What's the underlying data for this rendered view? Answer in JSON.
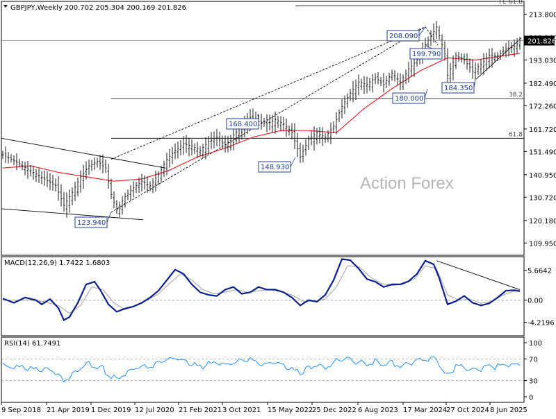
{
  "chart_data": {
    "type": "candlestick",
    "symbol_title": "GBPJPY,Weekly",
    "ohlc_values": "200.702 205.304 200.169 201.826",
    "watermark": "Action Forex",
    "current_price_label": "201.826",
    "price_axis": {
      "ylim": [
        105.0,
        219.0
      ],
      "ticks": [
        "213.800",
        "203.260",
        "193.030",
        "182.490",
        "172.260",
        "161.720",
        "151.490",
        "140.950",
        "130.720",
        "120.180",
        "109.950"
      ]
    },
    "x_axis": {
      "labels": [
        "9 Sep 2018",
        "21 Apr 2019",
        "1 Dec 2019",
        "12 Jul 2020",
        "21 Feb 2021",
        "3 Oct 2021",
        "15 May 2022",
        "25 Dec 2022",
        "6 Aug 2023",
        "17 Mar 2024",
        "27 Oct 2024",
        "8 Jun 2025"
      ]
    },
    "price_series_points": [
      [
        0,
        150
      ],
      [
        3,
        148
      ],
      [
        7,
        145
      ],
      [
        11,
        142
      ],
      [
        15,
        139
      ],
      [
        19,
        136
      ],
      [
        22,
        127
      ],
      [
        25,
        133
      ],
      [
        28,
        140
      ],
      [
        31,
        145
      ],
      [
        34,
        147
      ],
      [
        37,
        144
      ],
      [
        39,
        132
      ],
      [
        41,
        125
      ],
      [
        44,
        131
      ],
      [
        47,
        135
      ],
      [
        50,
        138
      ],
      [
        53,
        136
      ],
      [
        56,
        141
      ],
      [
        59,
        148
      ],
      [
        62,
        152
      ],
      [
        65,
        155
      ],
      [
        68,
        154
      ],
      [
        71,
        152
      ],
      [
        74,
        156
      ],
      [
        77,
        158
      ],
      [
        80,
        154
      ],
      [
        83,
        159
      ],
      [
        86,
        163
      ],
      [
        89,
        167
      ],
      [
        92,
        165
      ],
      [
        95,
        164
      ],
      [
        98,
        166
      ],
      [
        101,
        164
      ],
      [
        104,
        160
      ],
      [
        107,
        149
      ],
      [
        110,
        157
      ],
      [
        113,
        160
      ],
      [
        116,
        158
      ],
      [
        119,
        163
      ],
      [
        122,
        172
      ],
      [
        125,
        178
      ],
      [
        128,
        183
      ],
      [
        131,
        182
      ],
      [
        134,
        185
      ],
      [
        137,
        182
      ],
      [
        140,
        187
      ],
      [
        143,
        183
      ],
      [
        146,
        189
      ],
      [
        149,
        193
      ],
      [
        152,
        200
      ],
      [
        155,
        206
      ],
      [
        156,
        208
      ],
      [
        159,
        196
      ],
      [
        160,
        186
      ],
      [
        163,
        195
      ],
      [
        166,
        193
      ],
      [
        169,
        188
      ],
      [
        172,
        191
      ],
      [
        175,
        195
      ],
      [
        178,
        195
      ],
      [
        181,
        198
      ],
      [
        184,
        199
      ],
      [
        186,
        201.8
      ]
    ],
    "sma_points": [
      [
        0,
        144
      ],
      [
        10,
        145
      ],
      [
        20,
        142
      ],
      [
        30,
        140
      ],
      [
        40,
        138
      ],
      [
        50,
        139
      ],
      [
        60,
        143
      ],
      [
        70,
        149
      ],
      [
        80,
        153
      ],
      [
        90,
        158
      ],
      [
        100,
        161
      ],
      [
        110,
        161
      ],
      [
        120,
        160
      ],
      [
        130,
        171
      ],
      [
        140,
        180
      ],
      [
        150,
        188
      ],
      [
        160,
        194
      ],
      [
        170,
        193
      ],
      [
        180,
        195
      ],
      [
        186,
        196
      ]
    ],
    "horizontal_levels": [
      {
        "label": "FE 61.8",
        "value": 217.6
      },
      {
        "label": "38.2",
        "value": 175.5
      },
      {
        "label": "61.8",
        "value": 157.5
      }
    ],
    "annotations": [
      {
        "label": "208.090",
        "value": 208.09
      },
      {
        "label": "199.790",
        "value": 199.79
      },
      {
        "label": "184.350",
        "value": 184.35
      },
      {
        "label": "180.000",
        "value": 180.0
      },
      {
        "label": "168.400",
        "value": 168.4
      },
      {
        "label": "148.930",
        "value": 148.93
      },
      {
        "label": "123.940",
        "value": 123.94
      }
    ],
    "macd": {
      "title": "MACD(12,26,9) 1.7422 1.6803",
      "ticks": [
        "5.6642",
        "0.00",
        "-4.2196"
      ],
      "ylim": [
        -6.5,
        8.0
      ],
      "line_points": [
        [
          0,
          0.3
        ],
        [
          4,
          -0.5
        ],
        [
          8,
          0.5
        ],
        [
          12,
          0.0
        ],
        [
          14,
          -0.8
        ],
        [
          17,
          0.2
        ],
        [
          20,
          -1.5
        ],
        [
          22,
          -3.8
        ],
        [
          24,
          -3.2
        ],
        [
          27,
          -0.5
        ],
        [
          30,
          3.0
        ],
        [
          33,
          3.5
        ],
        [
          35,
          2.0
        ],
        [
          38,
          -0.8
        ],
        [
          41,
          -2.2
        ],
        [
          44,
          -1.6
        ],
        [
          47,
          -1.2
        ],
        [
          50,
          -0.5
        ],
        [
          53,
          0.5
        ],
        [
          56,
          1.8
        ],
        [
          59,
          3.8
        ],
        [
          62,
          5.8
        ],
        [
          65,
          5.0
        ],
        [
          68,
          3.0
        ],
        [
          71,
          1.5
        ],
        [
          74,
          1.0
        ],
        [
          77,
          0.8
        ],
        [
          80,
          2.0
        ],
        [
          83,
          2.5
        ],
        [
          86,
          1.2
        ],
        [
          89,
          1.5
        ],
        [
          92,
          2.5
        ],
        [
          95,
          2.0
        ],
        [
          98,
          2.0
        ],
        [
          101,
          1.5
        ],
        [
          104,
          0.5
        ],
        [
          107,
          -1.0
        ],
        [
          110,
          0.0
        ],
        [
          113,
          -0.3
        ],
        [
          116,
          1.0
        ],
        [
          119,
          3.8
        ],
        [
          122,
          7.8
        ],
        [
          125,
          7.6
        ],
        [
          128,
          6.0
        ],
        [
          131,
          4.0
        ],
        [
          134,
          3.5
        ],
        [
          137,
          2.5
        ],
        [
          140,
          3.0
        ],
        [
          143,
          3.0
        ],
        [
          146,
          3.6
        ],
        [
          149,
          5.0
        ],
        [
          152,
          7.5
        ],
        [
          155,
          6.8
        ],
        [
          157,
          4.2
        ],
        [
          160,
          -0.8
        ],
        [
          163,
          -0.2
        ],
        [
          166,
          0.8
        ],
        [
          169,
          -0.5
        ],
        [
          172,
          -1.0
        ],
        [
          175,
          -0.6
        ],
        [
          178,
          0.5
        ],
        [
          181,
          1.8
        ],
        [
          184,
          1.9
        ],
        [
          186,
          1.7
        ]
      ],
      "signal_points": [
        [
          0,
          0.0
        ],
        [
          5,
          0.0
        ],
        [
          10,
          0.0
        ],
        [
          15,
          -0.3
        ],
        [
          20,
          -1.0
        ],
        [
          24,
          -2.5
        ],
        [
          28,
          -1.0
        ],
        [
          32,
          2.5
        ],
        [
          36,
          2.0
        ],
        [
          40,
          -0.5
        ],
        [
          44,
          -1.8
        ],
        [
          48,
          -1.0
        ],
        [
          52,
          0.0
        ],
        [
          56,
          1.2
        ],
        [
          60,
          3.2
        ],
        [
          64,
          5.0
        ],
        [
          68,
          3.8
        ],
        [
          72,
          2.0
        ],
        [
          76,
          1.2
        ],
        [
          80,
          1.5
        ],
        [
          84,
          2.0
        ],
        [
          88,
          1.5
        ],
        [
          92,
          1.8
        ],
        [
          96,
          2.0
        ],
        [
          100,
          1.6
        ],
        [
          104,
          1.0
        ],
        [
          108,
          -0.2
        ],
        [
          112,
          -0.2
        ],
        [
          116,
          0.2
        ],
        [
          120,
          2.5
        ],
        [
          124,
          6.5
        ],
        [
          128,
          6.4
        ],
        [
          132,
          4.5
        ],
        [
          136,
          3.2
        ],
        [
          140,
          2.8
        ],
        [
          144,
          3.0
        ],
        [
          148,
          4.0
        ],
        [
          152,
          6.5
        ],
        [
          156,
          6.0
        ],
        [
          160,
          1.0
        ],
        [
          164,
          0.0
        ],
        [
          168,
          0.2
        ],
        [
          172,
          -0.6
        ],
        [
          176,
          -0.2
        ],
        [
          180,
          1.0
        ],
        [
          184,
          1.7
        ],
        [
          186,
          1.7
        ]
      ]
    },
    "rsi": {
      "title": "RSI(14) 61.7491",
      "ticks": [
        "100",
        "70",
        "30",
        "0"
      ],
      "ylim": [
        0,
        100
      ],
      "points": [
        [
          0,
          60
        ],
        [
          4,
          55
        ],
        [
          8,
          58
        ],
        [
          12,
          52
        ],
        [
          16,
          56
        ],
        [
          20,
          45
        ],
        [
          22,
          35
        ],
        [
          24,
          42
        ],
        [
          27,
          55
        ],
        [
          30,
          65
        ],
        [
          33,
          62
        ],
        [
          36,
          55
        ],
        [
          39,
          40
        ],
        [
          41,
          38
        ],
        [
          44,
          48
        ],
        [
          47,
          55
        ],
        [
          50,
          60
        ],
        [
          53,
          58
        ],
        [
          56,
          65
        ],
        [
          59,
          72
        ],
        [
          62,
          75
        ],
        [
          65,
          70
        ],
        [
          68,
          62
        ],
        [
          71,
          58
        ],
        [
          74,
          64
        ],
        [
          77,
          66
        ],
        [
          80,
          60
        ],
        [
          83,
          65
        ],
        [
          86,
          70
        ],
        [
          89,
          72
        ],
        [
          92,
          64
        ],
        [
          95,
          62
        ],
        [
          98,
          68
        ],
        [
          101,
          60
        ],
        [
          104,
          55
        ],
        [
          107,
          45
        ],
        [
          110,
          58
        ],
        [
          113,
          60
        ],
        [
          116,
          56
        ],
        [
          119,
          66
        ],
        [
          122,
          74
        ],
        [
          125,
          72
        ],
        [
          128,
          68
        ],
        [
          131,
          64
        ],
        [
          134,
          70
        ],
        [
          137,
          62
        ],
        [
          140,
          68
        ],
        [
          143,
          58
        ],
        [
          146,
          66
        ],
        [
          149,
          70
        ],
        [
          152,
          73
        ],
        [
          155,
          72
        ],
        [
          156,
          74
        ],
        [
          158,
          48
        ],
        [
          160,
          42
        ],
        [
          163,
          58
        ],
        [
          166,
          56
        ],
        [
          169,
          50
        ],
        [
          172,
          55
        ],
        [
          175,
          60
        ],
        [
          178,
          58
        ],
        [
          181,
          63
        ],
        [
          184,
          60
        ],
        [
          186,
          61.7
        ]
      ]
    }
  }
}
